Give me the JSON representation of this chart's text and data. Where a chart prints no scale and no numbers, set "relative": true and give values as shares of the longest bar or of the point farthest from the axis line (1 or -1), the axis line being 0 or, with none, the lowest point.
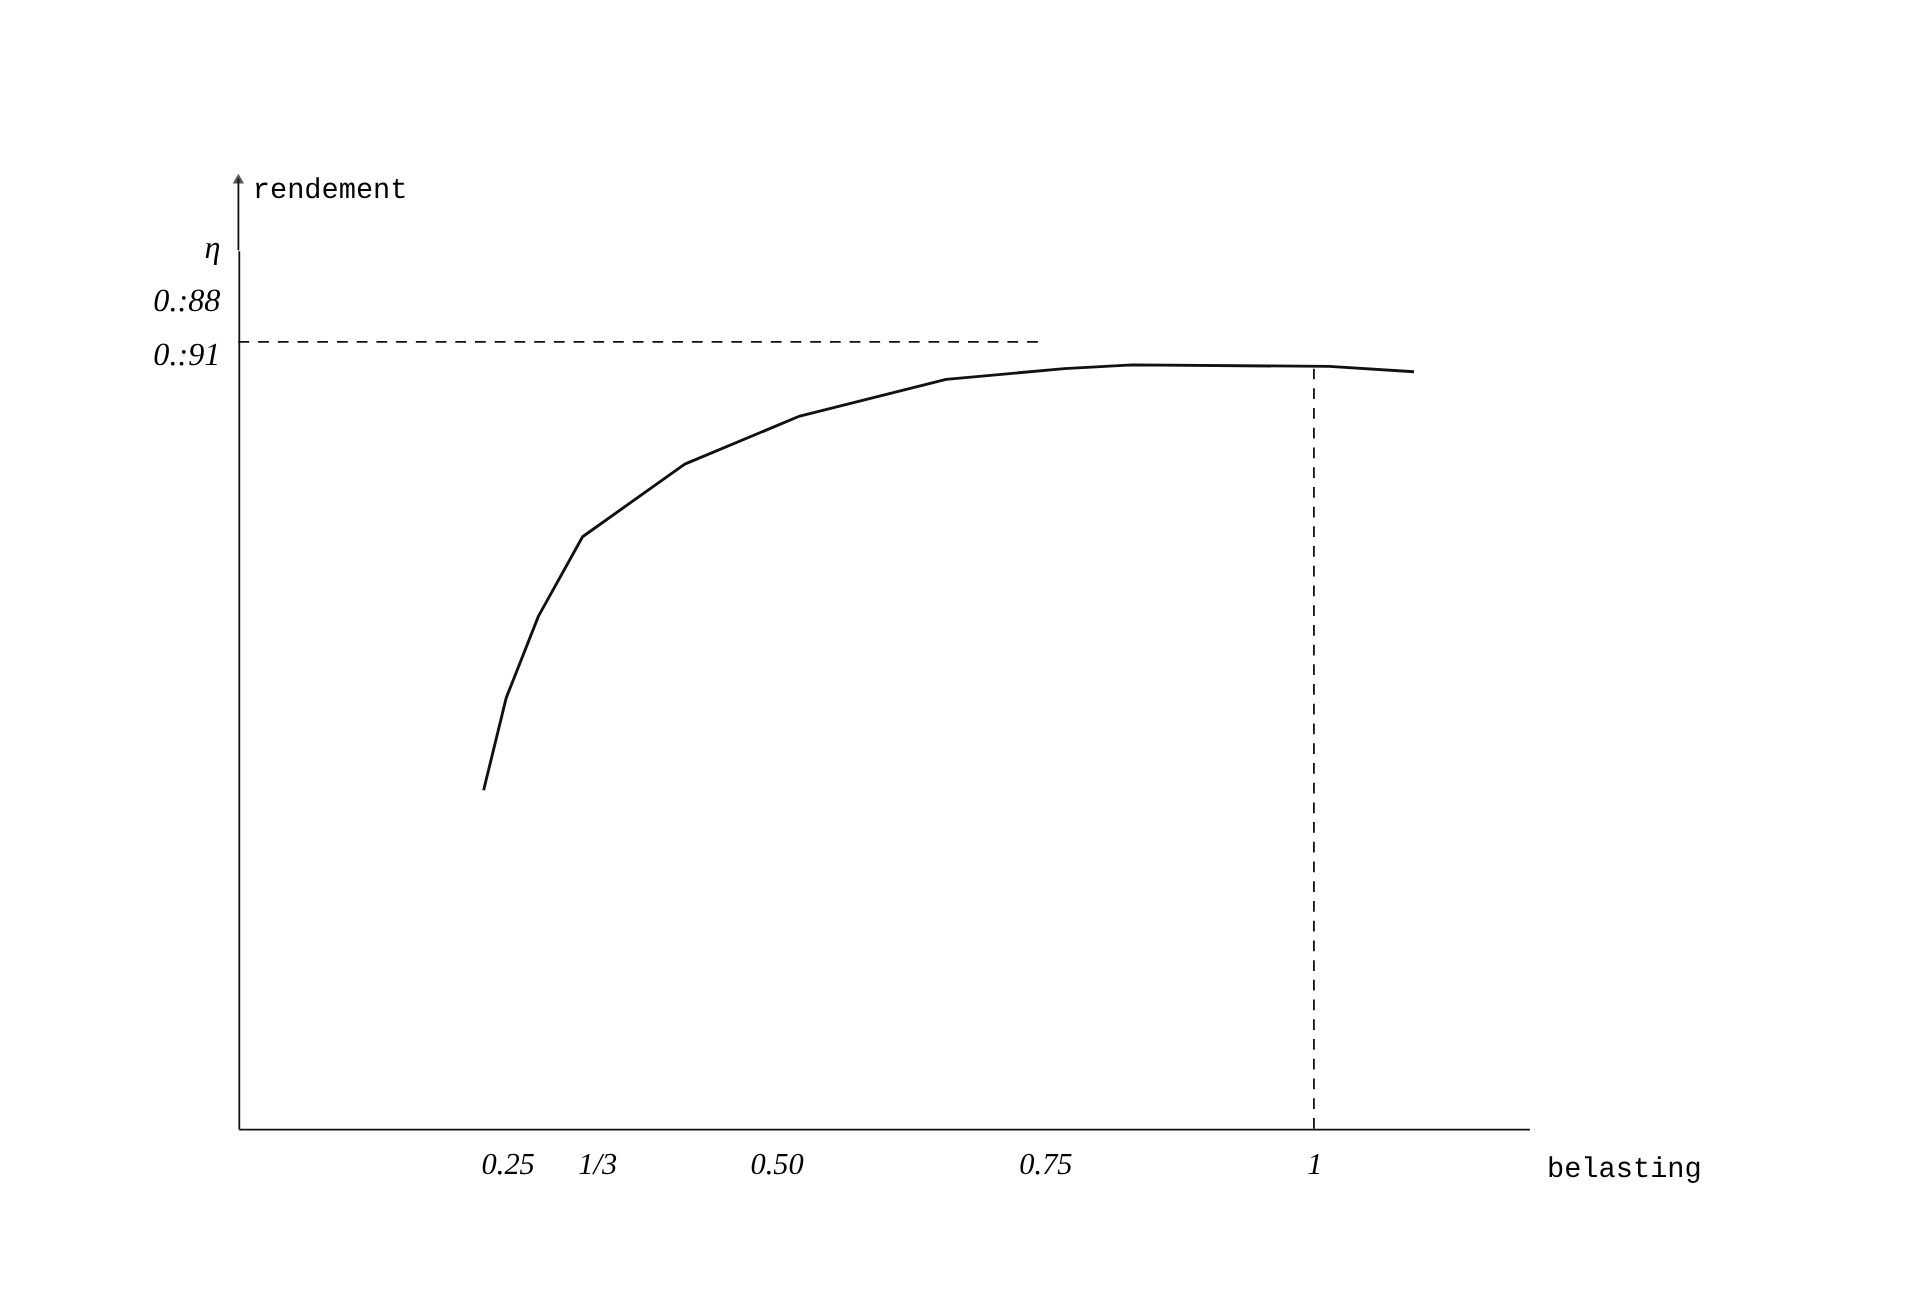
{
  "chart_data": {
    "type": "line",
    "relative": true,
    "xlabel": "belasting",
    "x": [
      0.228,
      0.249,
      0.279,
      0.32,
      0.415,
      0.522,
      0.658,
      0.768,
      0.831,
      1.014,
      1.093
    ],
    "series": [
      {
        "color": "#111111",
        "values": [
          0.443,
          0.564,
          0.671,
          0.775,
          0.87,
          0.933,
          0.981,
          0.995,
          1.0,
          0.998,
          0.991
        ]
      }
    ],
    "xlim": [
      0,
      1.2
    ],
    "xticks": [
      0.25,
      {
        "value": 0.3333,
        "label": "1/3"
      },
      {
        "value": 0.5,
        "label": "0.50"
      },
      0.75,
      1
    ],
    "ref_lines": [
      {
        "axis": "y",
        "value": 1.03,
        "line_style": "dashed"
      },
      {
        "axis": "x",
        "value": 1,
        "line_style": "dashed"
      }
    ],
    "annotations": [
      "rendement",
      "η",
      "0.:88",
      "0.:91"
    ],
    "grid": false,
    "marker": "none",
    "line_style": "solid"
  }
}
